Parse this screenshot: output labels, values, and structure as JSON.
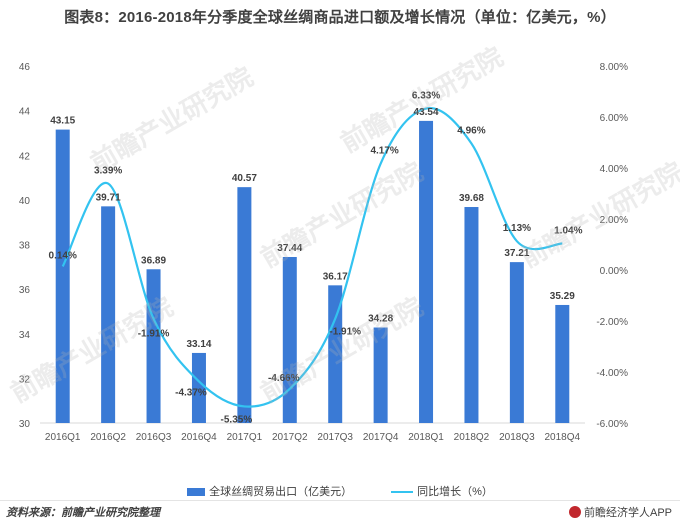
{
  "title": "图表8：2016-2018年分季度全球丝绸商品进口额及增长情况（单位：亿美元，%）",
  "watermark": "前瞻产业研究院",
  "legend": {
    "bar": "全球丝绸贸易出口（亿美元）",
    "line": "同比增长（%）"
  },
  "footer": {
    "source": "资料来源：前瞻产业研究院整理",
    "brand": "前瞻经济学人APP"
  },
  "colors": {
    "bar": "#3a7ad5",
    "line": "#33c3f0"
  },
  "chart_data": {
    "type": "bar",
    "categories": [
      "2016Q1",
      "2016Q2",
      "2016Q3",
      "2016Q4",
      "2017Q1",
      "2017Q2",
      "2017Q3",
      "2017Q4",
      "2018Q1",
      "2018Q2",
      "2018Q3",
      "2018Q4"
    ],
    "series": [
      {
        "name": "全球丝绸贸易出口（亿美元）",
        "type": "bar",
        "axis": "left",
        "values": [
          43.15,
          39.71,
          36.89,
          33.14,
          40.57,
          37.44,
          36.17,
          34.28,
          43.54,
          39.68,
          37.21,
          35.29
        ],
        "labels": [
          "43.15",
          "39.71",
          "36.89",
          "33.14",
          "40.57",
          "37.44",
          "36.17",
          "34.28",
          "43.54",
          "39.68",
          "37.21",
          "35.29"
        ]
      },
      {
        "name": "同比增长（%）",
        "type": "line",
        "axis": "right",
        "values": [
          0.14,
          3.39,
          -1.91,
          -4.37,
          -5.35,
          -4.66,
          -1.91,
          4.17,
          6.33,
          4.96,
          1.13,
          1.04
        ],
        "labels": [
          "0.14%",
          "3.39%",
          "-1.91%",
          "-4.37%",
          "-5.35%",
          "-4.66%",
          "-1.91%",
          "4.17%",
          "6.33%",
          "4.96%",
          "1.13%",
          "1.04%"
        ]
      }
    ],
    "y_left": {
      "min": 30,
      "max": 46,
      "ticks": [
        "30",
        "32",
        "34",
        "36",
        "38",
        "40",
        "42",
        "44",
        "46"
      ]
    },
    "y_right": {
      "min": -6,
      "max": 8,
      "ticks": [
        "-6.00%",
        "-4.00%",
        "-2.00%",
        "0.00%",
        "2.00%",
        "4.00%",
        "6.00%",
        "8.00%"
      ]
    },
    "grid": false,
    "legend_position": "bottom"
  }
}
